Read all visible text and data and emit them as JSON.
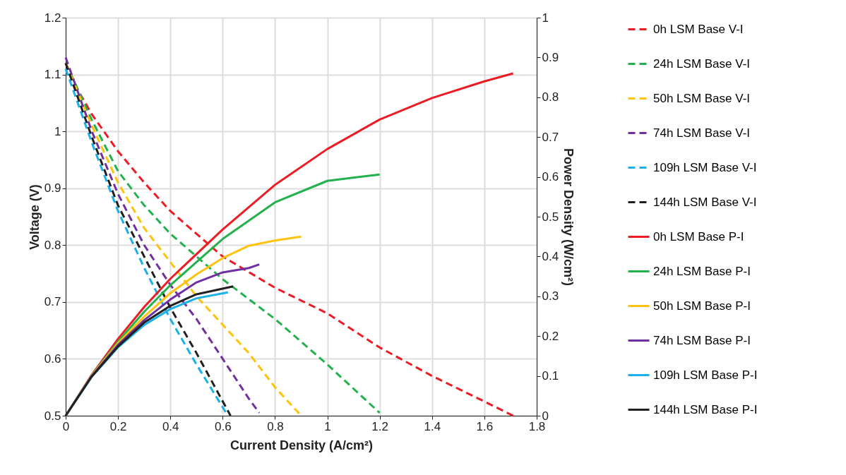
{
  "chart_data": {
    "type": "line",
    "xlabel": "Current Density (A/cm²)",
    "ylabel": "Voltage (V)",
    "y2label": "Power Density (W/cm²)",
    "xlim": [
      0,
      1.8
    ],
    "xticks": [
      0,
      0.2,
      0.4,
      0.6,
      0.8,
      1,
      1.2,
      1.4,
      1.6,
      1.8
    ],
    "ylim": [
      0.5,
      1.2
    ],
    "yticks": [
      0.5,
      0.6,
      0.7,
      0.8,
      0.9,
      1,
      1.1,
      1.2
    ],
    "y2lim": [
      0,
      1
    ],
    "y2ticks": [
      0,
      0.1,
      0.2,
      0.3,
      0.4,
      0.5,
      0.6,
      0.7,
      0.8,
      0.9,
      1
    ],
    "grid": true,
    "legend": "right",
    "series": [
      {
        "name": "0h LSM Base V-I",
        "color": "#ed1c24",
        "line_style": "dashed",
        "x": [
          0,
          0.05,
          0.1,
          0.2,
          0.3,
          0.4,
          0.6,
          0.8,
          1,
          1.2,
          1.4,
          1.6,
          1.71
        ],
        "values": [
          1.12,
          1.07,
          1.03,
          0.965,
          0.91,
          0.86,
          0.78,
          0.725,
          0.68,
          0.62,
          0.57,
          0.525,
          0.5
        ]
      },
      {
        "name": "24h LSM Base V-I",
        "color": "#22b14c",
        "line_style": "dashed",
        "x": [
          0,
          0.1,
          0.2,
          0.3,
          0.4,
          0.6,
          0.8,
          1,
          1.2
        ],
        "values": [
          1.12,
          1.02,
          0.93,
          0.87,
          0.82,
          0.74,
          0.67,
          0.59,
          0.505
        ]
      },
      {
        "name": "50h LSM Base V-I",
        "color": "#ffc20e",
        "line_style": "dashed",
        "x": [
          0,
          0.1,
          0.2,
          0.3,
          0.4,
          0.5,
          0.6,
          0.7,
          0.8,
          0.9
        ],
        "values": [
          1.12,
          1.01,
          0.91,
          0.83,
          0.77,
          0.71,
          0.66,
          0.61,
          0.55,
          0.5
        ]
      },
      {
        "name": "74h LSM Base V-I",
        "color": "#7030a0",
        "line_style": "dashed",
        "x": [
          0,
          0.1,
          0.2,
          0.3,
          0.4,
          0.5,
          0.6,
          0.7,
          0.74
        ],
        "values": [
          1.13,
          1,
          0.89,
          0.8,
          0.73,
          0.67,
          0.6,
          0.53,
          0.505
        ]
      },
      {
        "name": "109h LSM Base V-I",
        "color": "#1ab0e8",
        "line_style": "dashed",
        "x": [
          0,
          0.1,
          0.2,
          0.3,
          0.4,
          0.5,
          0.62
        ],
        "values": [
          1.11,
          0.98,
          0.86,
          0.76,
          0.67,
          0.59,
          0.5
        ]
      },
      {
        "name": "144h LSM Base V-I",
        "color": "#231f20",
        "line_style": "dashed",
        "x": [
          0,
          0.1,
          0.2,
          0.3,
          0.4,
          0.5,
          0.63
        ],
        "values": [
          1.12,
          0.99,
          0.87,
          0.78,
          0.69,
          0.61,
          0.5
        ]
      },
      {
        "name": "0h LSM Base P-I",
        "color": "#ed1c24",
        "line_style": "solid",
        "axis": "y2",
        "x": [
          0,
          0.1,
          0.2,
          0.3,
          0.4,
          0.6,
          0.8,
          1,
          1.2,
          1.4,
          1.6,
          1.71
        ],
        "values": [
          0,
          0.103,
          0.193,
          0.273,
          0.344,
          0.468,
          0.58,
          0.67,
          0.744,
          0.798,
          0.84,
          0.86
        ]
      },
      {
        "name": "24h LSM Base P-I",
        "color": "#22b14c",
        "line_style": "solid",
        "axis": "y2",
        "x": [
          0,
          0.1,
          0.2,
          0.3,
          0.4,
          0.6,
          0.8,
          1,
          1.2
        ],
        "values": [
          0,
          0.102,
          0.186,
          0.261,
          0.328,
          0.444,
          0.536,
          0.59,
          0.606
        ]
      },
      {
        "name": "50h LSM Base P-I",
        "color": "#ffc20e",
        "line_style": "solid",
        "axis": "y2",
        "x": [
          0,
          0.1,
          0.2,
          0.3,
          0.4,
          0.5,
          0.6,
          0.7,
          0.8,
          0.9
        ],
        "values": [
          0,
          0.101,
          0.182,
          0.249,
          0.308,
          0.355,
          0.396,
          0.427,
          0.44,
          0.45
        ]
      },
      {
        "name": "74h LSM Base P-I",
        "color": "#7030a0",
        "line_style": "solid",
        "axis": "y2",
        "x": [
          0,
          0.1,
          0.2,
          0.3,
          0.4,
          0.5,
          0.6,
          0.7,
          0.74
        ],
        "values": [
          0,
          0.1,
          0.178,
          0.24,
          0.292,
          0.335,
          0.36,
          0.371,
          0.38
        ]
      },
      {
        "name": "109h LSM Base P-I",
        "color": "#1ab0e8",
        "line_style": "solid",
        "axis": "y2",
        "x": [
          0,
          0.1,
          0.2,
          0.3,
          0.4,
          0.5,
          0.62
        ],
        "values": [
          0,
          0.098,
          0.172,
          0.228,
          0.268,
          0.295,
          0.31
        ]
      },
      {
        "name": "144h LSM Base P-I",
        "color": "#231f20",
        "line_style": "solid",
        "axis": "y2",
        "x": [
          0,
          0.1,
          0.2,
          0.3,
          0.4,
          0.5,
          0.64
        ],
        "values": [
          0,
          0.099,
          0.174,
          0.234,
          0.276,
          0.305,
          0.325
        ]
      }
    ]
  }
}
